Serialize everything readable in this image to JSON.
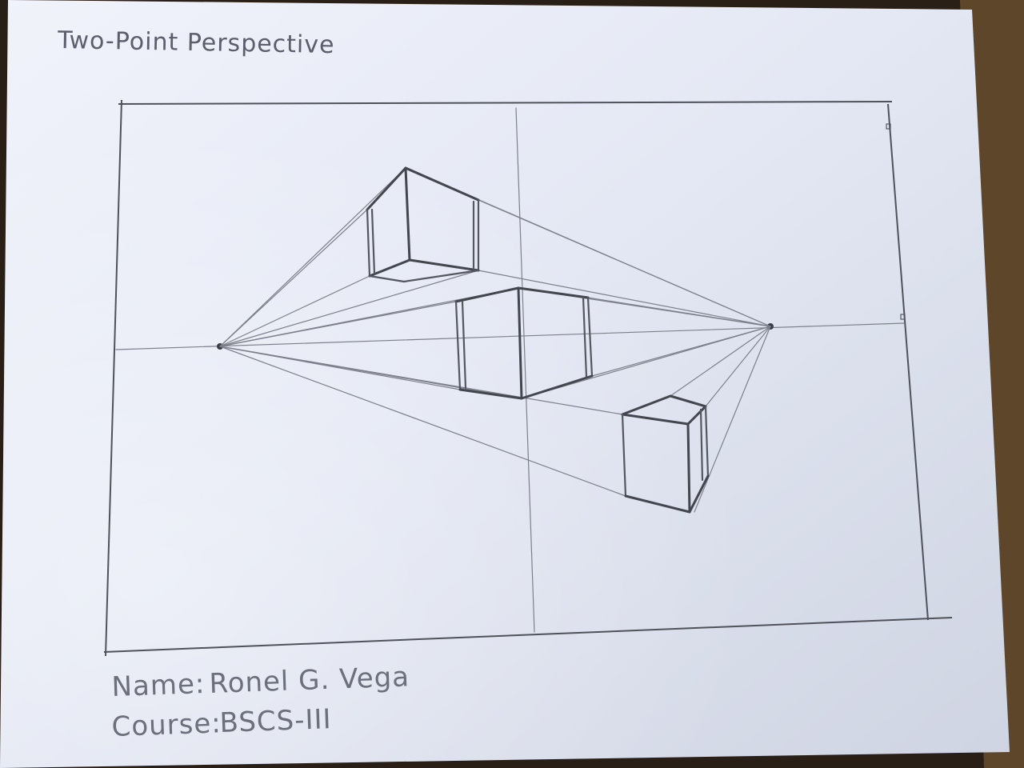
{
  "sheet": {
    "title": "Two-Point Perspective",
    "name_label": "Name:",
    "name_value": "Ronel G. Vega",
    "course_label": "Course:",
    "course_value": "BSCS-III"
  },
  "drawing": {
    "subject": "three boxes",
    "paper_color": "#e8ecf6",
    "pencil_color": "#55575f"
  }
}
